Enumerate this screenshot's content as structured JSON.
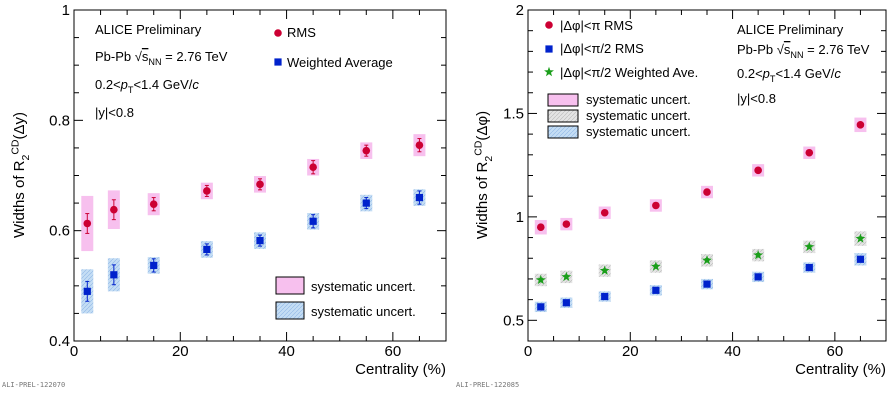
{
  "figure_refs": [
    "ALI-PREL-122070",
    "ALI-PREL-122085"
  ],
  "colors": {
    "rms": "#cc0033",
    "wavg": "#0022cc",
    "ave": "#1a9e1a",
    "sys_pink": "#f7c0ee",
    "sys_gray": "#d9d9d9",
    "sys_blue": "#c4ddf4"
  },
  "chart_data": [
    {
      "type": "scatter",
      "xlabel": "Centrality (%)",
      "ylabel": "Widths of R2CD(Δy)",
      "xlim": [
        0,
        70
      ],
      "ylim": [
        0.4,
        1.0
      ],
      "xticks": [
        "0",
        "20",
        "40",
        "60"
      ],
      "yticks": [
        "0.4",
        "0.6",
        "0.8",
        "1"
      ],
      "grid": false,
      "x": [
        2.5,
        7.5,
        15,
        25,
        35,
        45,
        55,
        65
      ],
      "text_lines": [
        "ALICE Preliminary",
        "Pb-Pb √sNN = 2.76 TeV",
        "0.2<pT<1.4 GeV/c",
        "|y|<0.8"
      ],
      "series": [
        {
          "name": "RMS",
          "marker": "circle",
          "color": "#cc0033",
          "values": [
            0.613,
            0.638,
            0.648,
            0.672,
            0.684,
            0.715,
            0.745,
            0.755
          ],
          "errors": [
            0.018,
            0.018,
            0.012,
            0.01,
            0.01,
            0.012,
            0.01,
            0.012
          ],
          "sys": [
            0.05,
            0.035,
            0.02,
            0.015,
            0.015,
            0.015,
            0.015,
            0.02
          ]
        },
        {
          "name": "Weighted Average",
          "marker": "square",
          "color": "#0022cc",
          "values": [
            0.49,
            0.52,
            0.537,
            0.566,
            0.582,
            0.617,
            0.65,
            0.66
          ],
          "errors": [
            0.018,
            0.018,
            0.012,
            0.01,
            0.01,
            0.012,
            0.01,
            0.012
          ],
          "sys": [
            0.04,
            0.03,
            0.015,
            0.015,
            0.015,
            0.015,
            0.015,
            0.015
          ]
        }
      ],
      "sys_legend": [
        "systematic uncert.",
        "systematic uncert."
      ]
    },
    {
      "type": "scatter",
      "xlabel": "Centrality (%)",
      "ylabel": "Widths of R2CD(Δφ)",
      "xlim": [
        0,
        70
      ],
      "ylim": [
        0.4,
        2.0
      ],
      "xticks": [
        "0",
        "20",
        "40",
        "60"
      ],
      "yticks": [
        "0.5",
        "1",
        "1.5",
        "2"
      ],
      "grid": false,
      "x": [
        2.5,
        7.5,
        15,
        25,
        35,
        45,
        55,
        65
      ],
      "text_lines": [
        "ALICE Preliminary",
        "Pb-Pb √sNN = 2.76 TeV",
        "0.2<pT<1.4 GeV/c",
        "|y|<0.8"
      ],
      "series": [
        {
          "name": "|Δφ|<π RMS",
          "marker": "circle",
          "color": "#cc0033",
          "values": [
            0.95,
            0.965,
            1.02,
            1.055,
            1.12,
            1.225,
            1.31,
            1.445
          ],
          "errors": [
            0.008,
            0.008,
            0.008,
            0.008,
            0.008,
            0.008,
            0.008,
            0.008
          ],
          "sys": [
            0.035,
            0.03,
            0.03,
            0.03,
            0.03,
            0.03,
            0.03,
            0.035
          ]
        },
        {
          "name": "|Δφ|<π/2 RMS",
          "marker": "square",
          "color": "#0022cc",
          "values": [
            0.565,
            0.585,
            0.615,
            0.645,
            0.675,
            0.71,
            0.755,
            0.795
          ],
          "errors": [
            0.008,
            0.008,
            0.008,
            0.008,
            0.008,
            0.008,
            0.008,
            0.008
          ],
          "sys": [
            0.025,
            0.025,
            0.025,
            0.025,
            0.025,
            0.025,
            0.025,
            0.03
          ]
        },
        {
          "name": "|Δφ|<π/2 Weighted Ave.",
          "marker": "star",
          "color": "#1a9e1a",
          "values": [
            0.695,
            0.71,
            0.74,
            0.76,
            0.79,
            0.815,
            0.855,
            0.895
          ],
          "errors": [
            0.008,
            0.008,
            0.008,
            0.008,
            0.008,
            0.008,
            0.008,
            0.008
          ],
          "sys": [
            0.03,
            0.03,
            0.03,
            0.03,
            0.03,
            0.03,
            0.03,
            0.035
          ]
        }
      ],
      "sys_legend": [
        "systematic uncert.",
        "systematic uncert.",
        "systematic uncert."
      ]
    }
  ]
}
